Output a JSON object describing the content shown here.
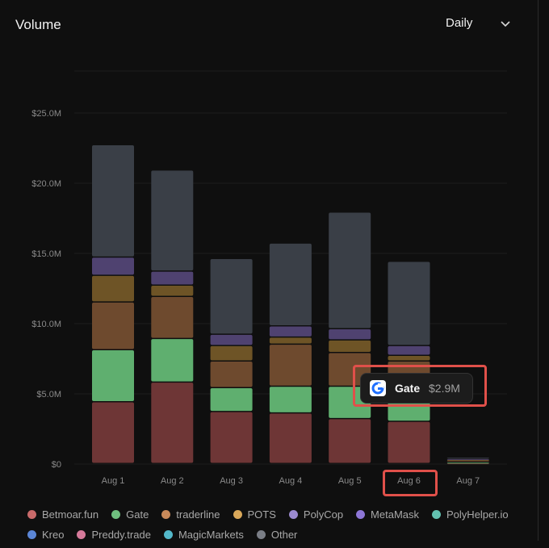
{
  "header": {
    "title": "Volume",
    "period_label": "Daily"
  },
  "chart_data": {
    "type": "bar",
    "stacked": true,
    "categories": [
      "Aug 1",
      "Aug 2",
      "Aug 3",
      "Aug 4",
      "Aug 5",
      "Aug 6",
      "Aug 7"
    ],
    "y_ticks": [
      "$0",
      "$5.0M",
      "$10.0M",
      "$15.0M",
      "$20.0M",
      "$25.0M"
    ],
    "y_tick_values": [
      0,
      5,
      10,
      15,
      20,
      25
    ],
    "ylim": [
      0,
      28
    ],
    "unit": "$M",
    "grid": true,
    "legend_position": "bottom",
    "series": [
      {
        "name": "Betmoar.fun",
        "color": "#c96a6a",
        "fill": "#6e3636",
        "values": [
          4.4,
          5.8,
          3.7,
          3.6,
          3.2,
          3.0,
          0.05
        ]
      },
      {
        "name": "Gate",
        "color": "#6fbf7e",
        "fill": "#5faf6f",
        "values": [
          3.7,
          3.1,
          1.7,
          1.9,
          2.3,
          2.9,
          0.05
        ]
      },
      {
        "name": "traderline",
        "color": "#c98a5a",
        "fill": "#6e4a2e",
        "values": [
          3.4,
          3.0,
          1.9,
          3.0,
          2.4,
          1.4,
          0.15
        ]
      },
      {
        "name": "POTS",
        "color": "#d9a85a",
        "fill": "#6e5426",
        "values": [
          1.9,
          0.8,
          1.1,
          0.5,
          0.9,
          0.4,
          0.05
        ]
      },
      {
        "name": "PolyCop",
        "color": "#9b8ad0",
        "fill": "#4f4270",
        "values": [
          1.3,
          1.0,
          0.8,
          0.8,
          0.8,
          0.7,
          0.05
        ]
      },
      {
        "name": "MetaMask",
        "color": "#8d76d6",
        "fill": "#3e3766",
        "values": [
          0.0,
          0.0,
          0.0,
          0.0,
          0.0,
          0.0,
          0.0
        ]
      },
      {
        "name": "PolyHelper.io",
        "color": "#63c1b0",
        "fill": "#2f5d56",
        "values": [
          0.0,
          0.0,
          0.0,
          0.0,
          0.0,
          0.0,
          0.0
        ]
      },
      {
        "name": "Kreo",
        "color": "#5b86d6",
        "fill": "#2f3e66",
        "values": [
          0.0,
          0.0,
          0.0,
          0.0,
          0.0,
          0.0,
          0.0
        ]
      },
      {
        "name": "Preddy.trade",
        "color": "#d67a9a",
        "fill": "#6a3446",
        "values": [
          0.0,
          0.0,
          0.0,
          0.0,
          0.0,
          0.0,
          0.0
        ]
      },
      {
        "name": "MagicMarkets",
        "color": "#53b8c9",
        "fill": "#2a5560",
        "values": [
          0.0,
          0.0,
          0.0,
          0.0,
          0.0,
          0.0,
          0.0
        ]
      },
      {
        "name": "Other",
        "color": "#7a7e86",
        "fill": "#3a3f47",
        "values": [
          8.0,
          7.2,
          5.4,
          5.9,
          8.3,
          6.0,
          0.1
        ]
      }
    ],
    "tooltip": {
      "series": "Gate",
      "value": "$2.9M"
    }
  },
  "legend": {
    "rows": [
      [
        "Betmoar.fun",
        "Gate",
        "traderline",
        "POTS",
        "PolyCop",
        "MetaMask",
        "PolyHelper.io"
      ],
      [
        "Kreo",
        "Preddy.trade",
        "MagicMarkets",
        "Other"
      ]
    ]
  },
  "colors": {
    "background": "#0f0f0f",
    "highlight": "#e0504a",
    "grid": "#1f1f1f"
  },
  "icons": {
    "period_dropdown": "chevron-down-icon",
    "tooltip_logo": "gate-logo-icon"
  }
}
